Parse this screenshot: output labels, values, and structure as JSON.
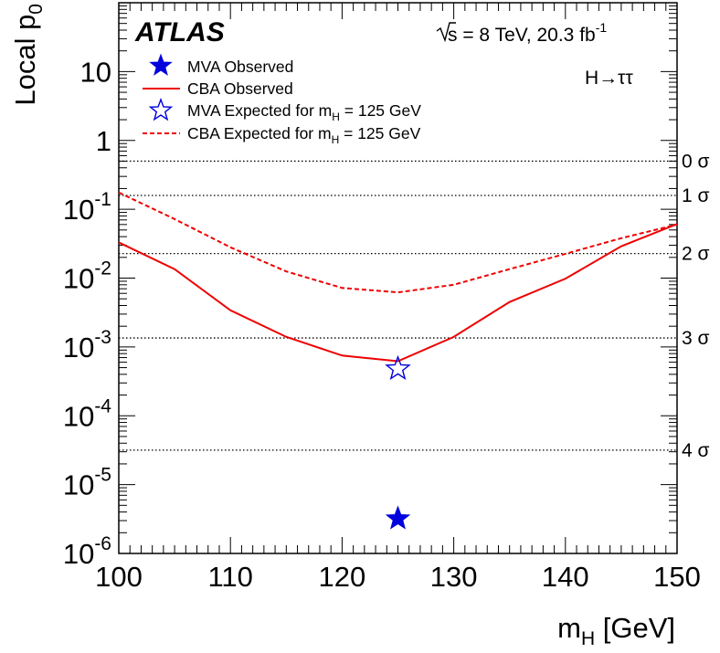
{
  "chart_data": {
    "type": "line",
    "experiment": "ATLAS",
    "energy_label": {
      "sqrt_symbol": "√",
      "s": "s",
      "rest": " = 8 TeV, 20.3 fb",
      "sup": "-1"
    },
    "channel_label": "H→ττ",
    "xlabel": {
      "main": "m",
      "sub": "H",
      "rest": " [GeV]"
    },
    "ylabel": {
      "main": "Local p",
      "sub": "0"
    },
    "xlim": [
      100,
      150
    ],
    "ylim": [
      1e-06,
      100
    ],
    "yscale": "log",
    "x_ticks": [
      100,
      110,
      120,
      130,
      140,
      150
    ],
    "y_ticks": [
      {
        "value": 1e-06,
        "base": "10",
        "exp": "-6"
      },
      {
        "value": 1e-05,
        "base": "10",
        "exp": "-5"
      },
      {
        "value": 0.0001,
        "base": "10",
        "exp": "-4"
      },
      {
        "value": 0.001,
        "base": "10",
        "exp": "-3"
      },
      {
        "value": 0.01,
        "base": "10",
        "exp": "-2"
      },
      {
        "value": 0.1,
        "base": "10",
        "exp": "-1"
      },
      {
        "value": 1,
        "base": "1",
        "exp": ""
      },
      {
        "value": 10,
        "base": "10",
        "exp": ""
      }
    ],
    "sigma_lines": [
      {
        "label": "0 σ",
        "p": 0.5
      },
      {
        "label": "1 σ",
        "p": 0.1587
      },
      {
        "label": "2 σ",
        "p": 0.02275
      },
      {
        "label": "3 σ",
        "p": 0.00135
      },
      {
        "label": "4 σ",
        "p": 3.17e-05
      }
    ],
    "series": [
      {
        "name": "CBA Observed",
        "style": "solid",
        "color": "#ee0000",
        "x": [
          100,
          105,
          110,
          115,
          120,
          125,
          130,
          135,
          140,
          145,
          150
        ],
        "y": [
          0.033,
          0.0135,
          0.0034,
          0.0014,
          0.00075,
          0.00062,
          0.0014,
          0.0045,
          0.0098,
          0.029,
          0.061
        ]
      },
      {
        "name": "CBA Expected for m",
        "name_sub": "H",
        "name_rest": " = 125 GeV",
        "style": "dashed",
        "color": "#ee0000",
        "x": [
          100,
          105,
          110,
          115,
          120,
          125,
          130,
          135,
          140,
          145,
          150
        ],
        "y": [
          0.175,
          0.072,
          0.028,
          0.0125,
          0.0072,
          0.0062,
          0.008,
          0.0135,
          0.0225,
          0.038,
          0.06
        ]
      },
      {
        "name": "MVA Observed",
        "marker": "filled-star",
        "color": "#0000dd",
        "x": [
          125
        ],
        "y": [
          3.2e-06
        ]
      },
      {
        "name": "MVA Expected for m",
        "name_sub": "H",
        "name_rest": " = 125 GeV",
        "marker": "open-star",
        "color": "#0000dd",
        "x": [
          125
        ],
        "y": [
          0.00048
        ]
      }
    ],
    "legend_placement": "top-left"
  }
}
